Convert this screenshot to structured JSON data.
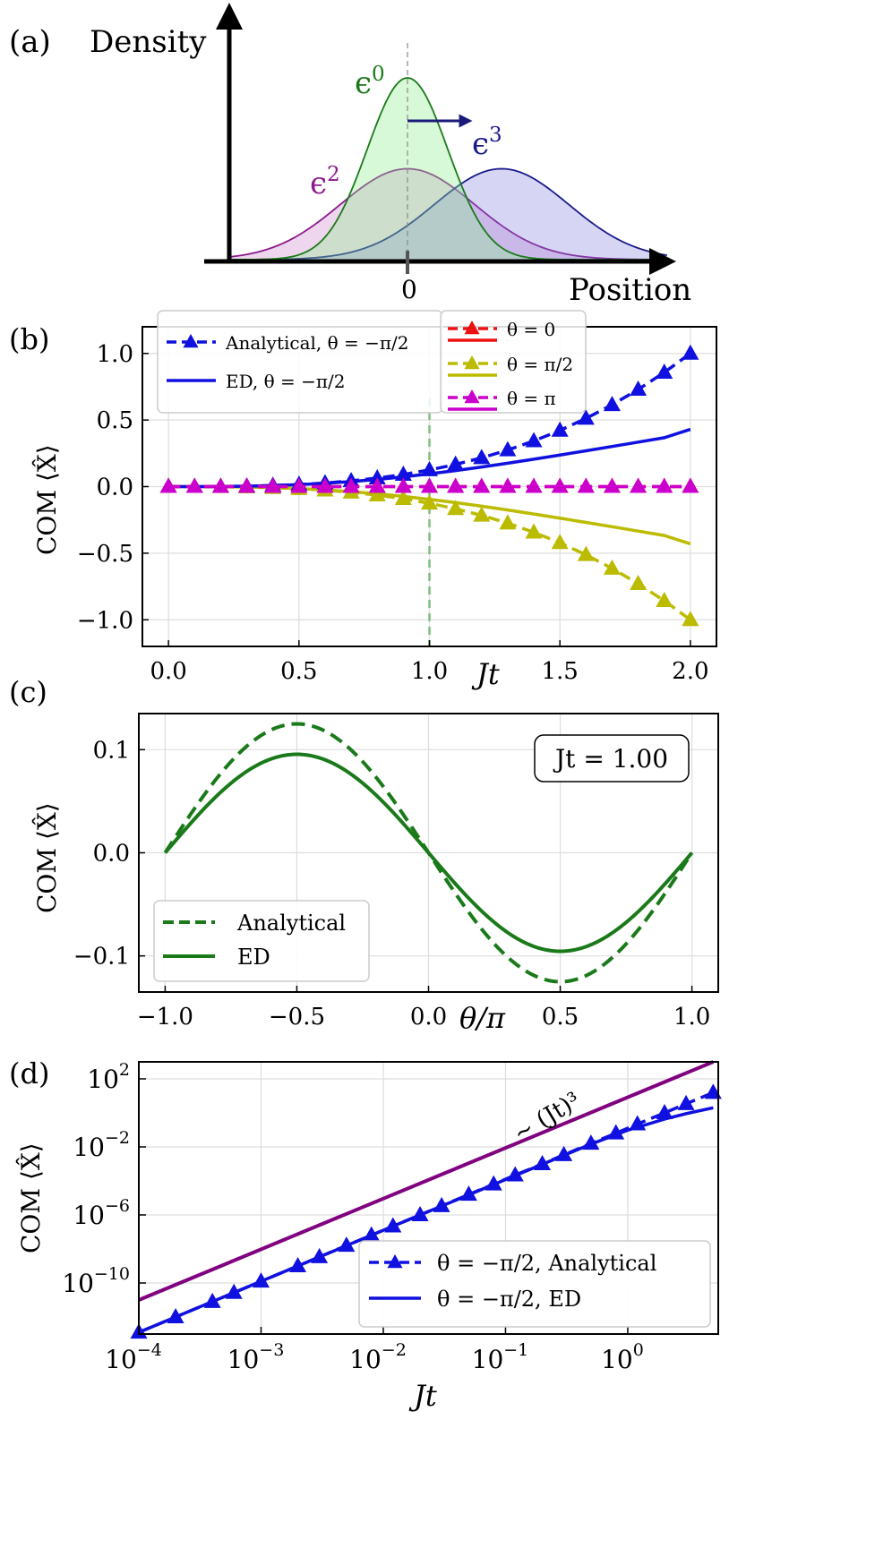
{
  "panels": {
    "a": {
      "label": "(a)",
      "ylabel": "Density",
      "xlabel": "Position",
      "zero_label": "0",
      "curve_labels": {
        "e0": "ϵ",
        "e0_sup": "0",
        "e2": "ϵ",
        "e2_sup": "2",
        "e3": "ϵ",
        "e3_sup": "3"
      },
      "colors": {
        "e0": "#1a7a1a",
        "e2": "#8b1a8b",
        "e3": "#1a1a8b"
      }
    },
    "b": {
      "label": "(b)",
      "ylabel": "COM ⟨X̂⟩",
      "xlabel": "Jt",
      "legend": [
        "Analytical, θ = −π/2",
        "ED, θ = −π/2",
        "θ = 0",
        "θ = π/2",
        "θ = π"
      ],
      "xticks": [
        "0.0",
        "0.5",
        "1.0",
        "1.5",
        "2.0"
      ],
      "yticks": [
        "1.0",
        "0.5",
        "0.0",
        "−0.5",
        "−1.0"
      ]
    },
    "c": {
      "label": "(c)",
      "ylabel": "COM ⟨X̂⟩",
      "xlabel": "θ/π",
      "annotation": "Jt = 1.00",
      "legend": [
        "Analytical",
        "ED"
      ],
      "xticks": [
        "−1.0",
        "−0.5",
        "0.0",
        "0.5",
        "1.0"
      ],
      "yticks": [
        "0.1",
        "0.0",
        "−0.1"
      ]
    },
    "d": {
      "label": "(d)",
      "ylabel": "COM ⟨X̂⟩",
      "xlabel": "Jt",
      "annotation": "∼ (Jt)³",
      "legend": [
        "θ = −π/2, Analytical",
        "θ = −π/2, ED"
      ],
      "xticks": [
        {
          "b": "10",
          "e": "−4"
        },
        {
          "b": "10",
          "e": "−3"
        },
        {
          "b": "10",
          "e": "−2"
        },
        {
          "b": "10",
          "e": "−1"
        },
        {
          "b": "10",
          "e": "0"
        }
      ],
      "yticks": [
        {
          "b": "10",
          "e": "2"
        },
        {
          "b": "10",
          "e": "−2"
        },
        {
          "b": "10",
          "e": "−6"
        },
        {
          "b": "10",
          "e": "−10"
        }
      ]
    }
  },
  "chart_data": [
    {
      "panel": "a",
      "type": "area",
      "x_label": "Position",
      "y_label": "Density",
      "series": [
        {
          "name": "ϵ⁰",
          "center": 0.0,
          "sigma": 0.9,
          "peak": 1.0,
          "color": "#1a7a1a"
        },
        {
          "name": "ϵ²",
          "center": 0.0,
          "sigma": 1.5,
          "peak": 0.5,
          "color": "#8b1a8b"
        },
        {
          "name": "ϵ³",
          "center": 1.0,
          "sigma": 1.5,
          "peak": 0.5,
          "color": "#1a1a8b"
        }
      ]
    },
    {
      "panel": "b",
      "type": "line",
      "xlabel": "Jt",
      "ylabel": "COM ⟨X̂⟩",
      "xlim": [
        -0.1,
        2.1
      ],
      "ylim": [
        -1.2,
        1.2
      ],
      "x": [
        0.0,
        0.1,
        0.2,
        0.3,
        0.4,
        0.5,
        0.6,
        0.7,
        0.8,
        0.9,
        1.0,
        1.1,
        1.2,
        1.3,
        1.4,
        1.5,
        1.6,
        1.7,
        1.8,
        1.9,
        2.0
      ],
      "vline": 1.0,
      "series": [
        {
          "name": "Analytical, θ = −π/2",
          "style": "dashed-triangle",
          "color": "#1010e0",
          "values": [
            0.0,
            0.0001,
            0.001,
            0.0034,
            0.008,
            0.0156,
            0.027,
            0.0429,
            0.064,
            0.0911,
            0.125,
            0.1664,
            0.216,
            0.2746,
            0.343,
            0.4219,
            0.512,
            0.6141,
            0.729,
            0.8574,
            1.0
          ]
        },
        {
          "name": "ED, θ = −π/2",
          "style": "solid",
          "color": "#1010e0",
          "values": [
            0.0,
            0.0001,
            0.001,
            0.0033,
            0.0077,
            0.0147,
            0.0247,
            0.0378,
            0.0541,
            0.0734,
            0.0955,
            0.1202,
            0.147,
            0.1756,
            0.2057,
            0.2369,
            0.2689,
            0.3014,
            0.3342,
            0.3671,
            0.43
          ]
        },
        {
          "name": "θ = 0",
          "style": "dashed-triangle",
          "color": "#ee1111",
          "values": [
            0,
            0,
            0,
            0,
            0,
            0,
            0,
            0,
            0,
            0,
            0,
            0,
            0,
            0,
            0,
            0,
            0,
            0,
            0,
            0,
            0
          ]
        },
        {
          "name": "θ = π/2",
          "style": "dashed-triangle",
          "color": "#bbbb00",
          "values": [
            0.0,
            -0.0001,
            -0.001,
            -0.0034,
            -0.008,
            -0.0156,
            -0.027,
            -0.0429,
            -0.064,
            -0.0911,
            -0.125,
            -0.1664,
            -0.216,
            -0.2746,
            -0.343,
            -0.4219,
            -0.512,
            -0.6141,
            -0.729,
            -0.8574,
            -1.0
          ]
        },
        {
          "name": "θ = π/2 (ED)",
          "style": "solid",
          "color": "#bbbb00",
          "values": [
            0.0,
            -0.0001,
            -0.001,
            -0.0033,
            -0.0077,
            -0.0147,
            -0.0247,
            -0.0378,
            -0.0541,
            -0.0734,
            -0.0955,
            -0.1202,
            -0.147,
            -0.1756,
            -0.2057,
            -0.2369,
            -0.2689,
            -0.3014,
            -0.3342,
            -0.3671,
            -0.43
          ]
        },
        {
          "name": "θ = π",
          "style": "dashed-triangle",
          "color": "#cc00cc",
          "values": [
            0,
            0,
            0,
            0,
            0,
            0,
            0,
            0,
            0,
            0,
            0,
            0,
            0,
            0,
            0,
            0,
            0,
            0,
            0,
            0,
            0
          ]
        }
      ]
    },
    {
      "panel": "c",
      "type": "line",
      "xlabel": "θ/π",
      "ylabel": "COM ⟨X̂⟩",
      "xlim": [
        -1.1,
        1.1
      ],
      "ylim": [
        -0.135,
        0.135
      ],
      "series": [
        {
          "name": "Analytical",
          "style": "dashed",
          "color": "#1a7a1a",
          "amplitude": 0.125
        },
        {
          "name": "ED",
          "style": "solid",
          "color": "#1a7a1a",
          "amplitude": 0.0955
        }
      ]
    },
    {
      "panel": "d",
      "type": "line",
      "xlabel": "Jt",
      "ylabel": "COM ⟨X̂⟩",
      "xscale": "log",
      "yscale": "log",
      "xlim": [
        0.0001,
        5.5
      ],
      "ylim": [
        1e-13,
        1000
      ],
      "series": [
        {
          "name": "∼ (Jt)³",
          "style": "solid",
          "color": "#800080",
          "x": [
            0.0001,
            5.0
          ],
          "values": [
            1e-11,
            1000
          ]
        },
        {
          "name": "θ = −π/2, Analytical",
          "style": "dashed-triangle",
          "color": "#1010e0",
          "x": [
            0.0001,
            0.0002,
            0.0004,
            0.0006,
            0.001,
            0.002,
            0.003,
            0.005,
            0.008,
            0.012,
            0.02,
            0.03,
            0.05,
            0.08,
            0.12,
            0.2,
            0.3,
            0.5,
            0.8,
            1.2,
            2.0,
            3.0,
            5.0
          ],
          "values": [
            1.25e-13,
            1e-12,
            8e-12,
            2.7e-11,
            1.25e-10,
            1e-09,
            3.4e-09,
            1.6e-08,
            6.4e-08,
            2.2e-07,
            1e-06,
            3.4e-06,
            1.6e-05,
            6.4e-05,
            0.00022,
            0.001,
            0.0034,
            0.016,
            0.064,
            0.22,
            1.0,
            3.4,
            15.6
          ]
        },
        {
          "name": "θ = −π/2, ED",
          "style": "solid",
          "color": "#1010e0",
          "x": [
            0.0001,
            0.001,
            0.01,
            0.1,
            0.5,
            1.0,
            2.0,
            3.0,
            5.0
          ],
          "values": [
            1.25e-13,
            1.25e-10,
            1.25e-07,
            0.00012,
            0.0145,
            0.0955,
            0.43,
            0.9,
            2.0
          ]
        }
      ]
    }
  ]
}
